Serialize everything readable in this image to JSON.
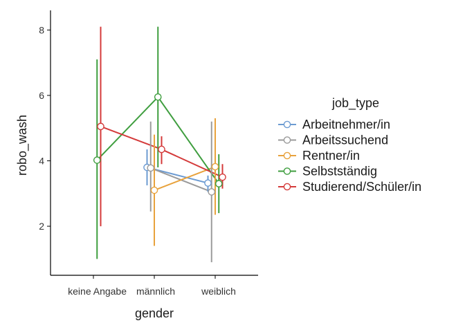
{
  "chart_data": {
    "type": "line",
    "xlabel": "gender",
    "ylabel": "robo_wash",
    "categories": [
      "keine Angabe",
      "männlich",
      "weiblich"
    ],
    "ylim": [
      0.5,
      8.6
    ],
    "yticks": [
      2,
      4,
      6,
      8
    ],
    "grid": false,
    "legend": {
      "title": "job_type",
      "position": "right"
    },
    "series": [
      {
        "name": "Arbeitnehmer/in",
        "color": "#6c9bd2",
        "points": [
          null,
          {
            "y": 3.8,
            "lo": 3.25,
            "hi": 4.35
          },
          {
            "y": 3.32,
            "lo": 3.05,
            "hi": 3.55
          }
        ]
      },
      {
        "name": "Arbeitssuchend",
        "color": "#9b9b9b",
        "points": [
          null,
          {
            "y": 3.78,
            "lo": 2.45,
            "hi": 5.2
          },
          {
            "y": 3.05,
            "lo": 0.9,
            "hi": 5.2
          }
        ]
      },
      {
        "name": "Rentner/in",
        "color": "#e8a23c",
        "points": [
          null,
          {
            "y": 3.1,
            "lo": 1.4,
            "hi": 4.8
          },
          {
            "y": 3.82,
            "lo": 2.35,
            "hi": 5.3
          }
        ]
      },
      {
        "name": "Selbstständig",
        "color": "#3f9e3f",
        "points": [
          {
            "y": 4.02,
            "lo": 1.0,
            "hi": 7.1
          },
          {
            "y": 5.95,
            "lo": 3.8,
            "hi": 8.1
          },
          {
            "y": 3.3,
            "lo": 2.4,
            "hi": 4.2
          }
        ]
      },
      {
        "name": "Studierend/Schüler/in",
        "color": "#d43a3a",
        "points": [
          {
            "y": 5.05,
            "lo": 2.0,
            "hi": 8.1
          },
          {
            "y": 4.35,
            "lo": 3.9,
            "hi": 4.75
          },
          {
            "y": 3.5,
            "lo": 3.15,
            "hi": 3.9
          }
        ]
      }
    ]
  }
}
